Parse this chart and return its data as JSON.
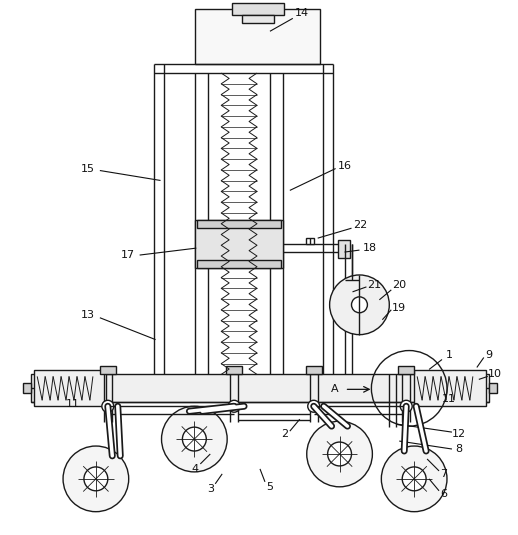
{
  "bg_color": "#ffffff",
  "line_color": "#1a1a1a",
  "fig_width": 5.18,
  "fig_height": 5.35,
  "dpi": 100
}
